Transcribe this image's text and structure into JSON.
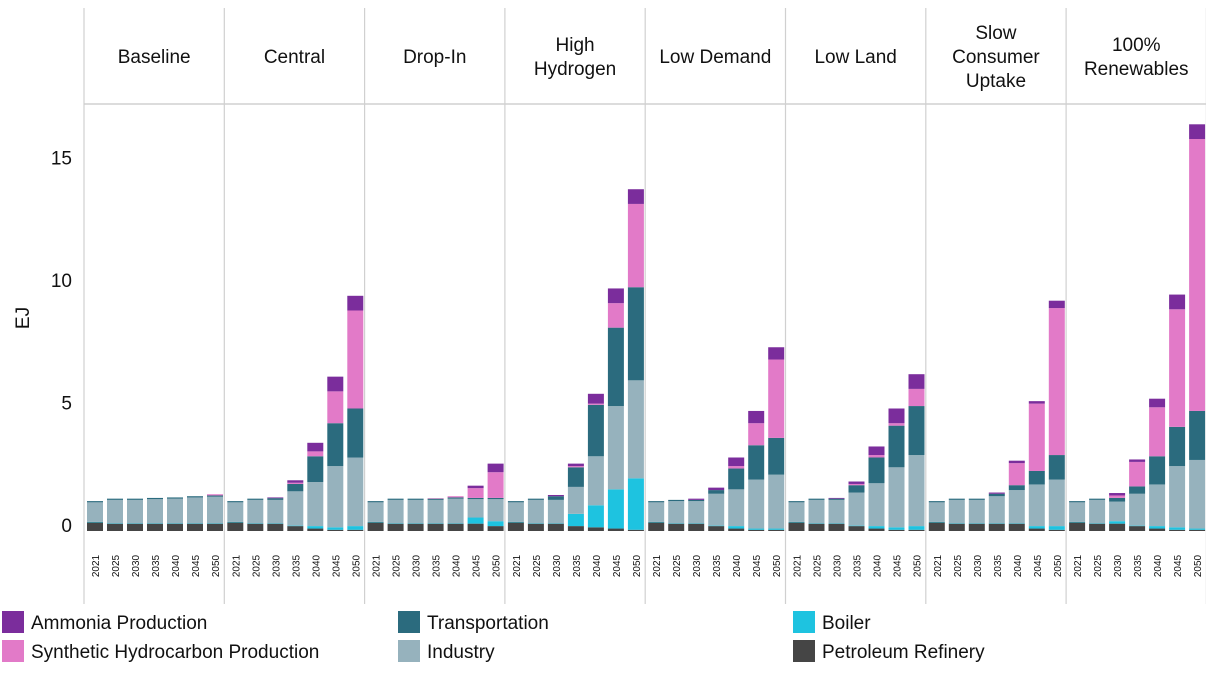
{
  "chart_data": {
    "type": "bar",
    "stacked": true,
    "ylabel": "EJ",
    "ylim": [
      0,
      17
    ],
    "yticks": [
      0,
      5,
      10,
      15
    ],
    "years": [
      "2021",
      "2025",
      "2030",
      "2035",
      "2040",
      "2045",
      "2050"
    ],
    "panels": [
      "Baseline",
      "Central",
      "Drop-In",
      "High Hydrogen",
      "Low Demand",
      "Low Land",
      "Slow Consumer Uptake",
      "100% Renewables"
    ],
    "panel_title_lines": [
      [
        "Baseline"
      ],
      [
        "Central"
      ],
      [
        "Drop-In"
      ],
      [
        "High",
        "Hydrogen"
      ],
      [
        "Low Demand"
      ],
      [
        "Low Land"
      ],
      [
        "Slow",
        "Consumer",
        "Uptake"
      ],
      [
        "100%",
        "Renewables"
      ]
    ],
    "series_names": [
      "Petroleum Refinery",
      "Boiler",
      "Industry",
      "Transportation",
      "Synthetic Hydrocarbon Production",
      "Ammonia Production"
    ],
    "colors": {
      "Ammonia Production": "#7b2d9c",
      "Synthetic Hydrocarbon Production": "#e27ac8",
      "Transportation": "#2b6b7e",
      "Industry": "#96b2bd",
      "Boiler": "#1ec3e0",
      "Petroleum Refinery": "#454545"
    },
    "legend": [
      {
        "name": "Ammonia Production",
        "color": "#7b2d9c"
      },
      {
        "name": "Transportation",
        "color": "#2b6b7e"
      },
      {
        "name": "Boiler",
        "color": "#1ec3e0"
      },
      {
        "name": "Synthetic Hydrocarbon Production",
        "color": "#e27ac8"
      },
      {
        "name": "Industry",
        "color": "#96b2bd"
      },
      {
        "name": "Petroleum Refinery",
        "color": "#454545"
      }
    ],
    "legend_placement": "bottom",
    "grid": false,
    "values": {
      "Baseline": [
        [
          0.35,
          0.02,
          0.8,
          0.05,
          0,
          0
        ],
        [
          0.3,
          0.02,
          0.95,
          0.05,
          0,
          0
        ],
        [
          0.3,
          0.02,
          0.95,
          0.05,
          0,
          0
        ],
        [
          0.3,
          0.02,
          0.98,
          0.05,
          0,
          0
        ],
        [
          0.3,
          0.02,
          1.0,
          0.05,
          0,
          0
        ],
        [
          0.3,
          0.02,
          1.05,
          0.05,
          0,
          0
        ],
        [
          0.3,
          0.02,
          1.08,
          0.05,
          0.05,
          0
        ]
      ],
      "Central": [
        [
          0.35,
          0.02,
          0.8,
          0.05,
          0,
          0
        ],
        [
          0.3,
          0.02,
          0.95,
          0.05,
          0,
          0
        ],
        [
          0.3,
          0.02,
          0.95,
          0.07,
          0,
          0.03
        ],
        [
          0.2,
          0.02,
          1.4,
          0.3,
          0.05,
          0.1
        ],
        [
          0.1,
          0.1,
          1.8,
          1.05,
          0.2,
          0.35
        ],
        [
          0.05,
          0.1,
          2.5,
          1.75,
          1.3,
          0.6
        ],
        [
          0.05,
          0.15,
          2.8,
          2.0,
          4.0,
          0.6
        ]
      ],
      "Drop-In": [
        [
          0.35,
          0.02,
          0.8,
          0.05,
          0,
          0
        ],
        [
          0.3,
          0.02,
          0.95,
          0.05,
          0,
          0
        ],
        [
          0.3,
          0.02,
          0.95,
          0.05,
          0,
          0
        ],
        [
          0.3,
          0.02,
          0.95,
          0.05,
          0.02,
          0
        ],
        [
          0.3,
          0.02,
          1.0,
          0.05,
          0.05,
          0
        ],
        [
          0.3,
          0.25,
          0.75,
          0.05,
          0.4,
          0.1
        ],
        [
          0.2,
          0.2,
          0.9,
          0.05,
          1.05,
          0.35
        ]
      ],
      "High Hydrogen": [
        [
          0.35,
          0.02,
          0.8,
          0.05,
          0,
          0
        ],
        [
          0.3,
          0.02,
          0.95,
          0.05,
          0,
          0
        ],
        [
          0.3,
          0.02,
          0.95,
          0.15,
          0,
          0.05
        ],
        [
          0.2,
          0.5,
          1.1,
          0.8,
          0.05,
          0.1
        ],
        [
          0.15,
          0.9,
          2.0,
          2.1,
          0.05,
          0.4
        ],
        [
          0.1,
          1.6,
          3.4,
          3.2,
          1.0,
          0.6
        ],
        [
          0.05,
          2.1,
          4.0,
          3.8,
          3.4,
          0.6
        ]
      ],
      "Low Demand": [
        [
          0.35,
          0.02,
          0.8,
          0.05,
          0,
          0
        ],
        [
          0.3,
          0.02,
          0.9,
          0.05,
          0,
          0
        ],
        [
          0.3,
          0.02,
          0.9,
          0.05,
          0,
          0.05
        ],
        [
          0.2,
          0.02,
          1.3,
          0.15,
          0,
          0.1
        ],
        [
          0.1,
          0.1,
          1.5,
          0.85,
          0.1,
          0.35
        ],
        [
          0.05,
          0.05,
          2.0,
          1.4,
          0.9,
          0.5
        ],
        [
          0.05,
          0.05,
          2.2,
          1.5,
          3.2,
          0.5
        ]
      ],
      "Low Land": [
        [
          0.35,
          0.02,
          0.8,
          0.05,
          0,
          0
        ],
        [
          0.3,
          0.02,
          0.95,
          0.05,
          0,
          0
        ],
        [
          0.3,
          0.02,
          0.95,
          0.05,
          0,
          0.03
        ],
        [
          0.2,
          0.02,
          1.35,
          0.3,
          0.05,
          0.1
        ],
        [
          0.1,
          0.1,
          1.75,
          1.05,
          0.1,
          0.35
        ],
        [
          0.05,
          0.1,
          2.45,
          1.7,
          0.1,
          0.6
        ],
        [
          0.05,
          0.15,
          2.9,
          2.0,
          0.7,
          0.6
        ]
      ],
      "Slow Consumer Uptake": [
        [
          0.35,
          0.02,
          0.8,
          0.05,
          0,
          0
        ],
        [
          0.3,
          0.02,
          0.95,
          0.05,
          0,
          0
        ],
        [
          0.3,
          0.02,
          0.95,
          0.05,
          0,
          0
        ],
        [
          0.3,
          0.02,
          1.1,
          0.1,
          0,
          0.05
        ],
        [
          0.3,
          0.02,
          1.35,
          0.2,
          0.9,
          0.1
        ],
        [
          0.1,
          0.1,
          1.7,
          0.55,
          2.75,
          0.1
        ],
        [
          0.05,
          0.15,
          1.9,
          1.0,
          6.0,
          0.3
        ]
      ],
      "100% Renewables": [
        [
          0.35,
          0.02,
          0.8,
          0.05,
          0,
          0
        ],
        [
          0.3,
          0.02,
          0.95,
          0.05,
          0,
          0
        ],
        [
          0.3,
          0.1,
          0.8,
          0.15,
          0.1,
          0.1
        ],
        [
          0.2,
          0.02,
          1.3,
          0.3,
          1.0,
          0.1
        ],
        [
          0.1,
          0.1,
          1.7,
          1.15,
          2.0,
          0.35
        ],
        [
          0.05,
          0.1,
          2.5,
          1.6,
          4.8,
          0.6
        ],
        [
          0.05,
          0.05,
          2.8,
          2.0,
          11.1,
          0.6
        ]
      ]
    }
  }
}
